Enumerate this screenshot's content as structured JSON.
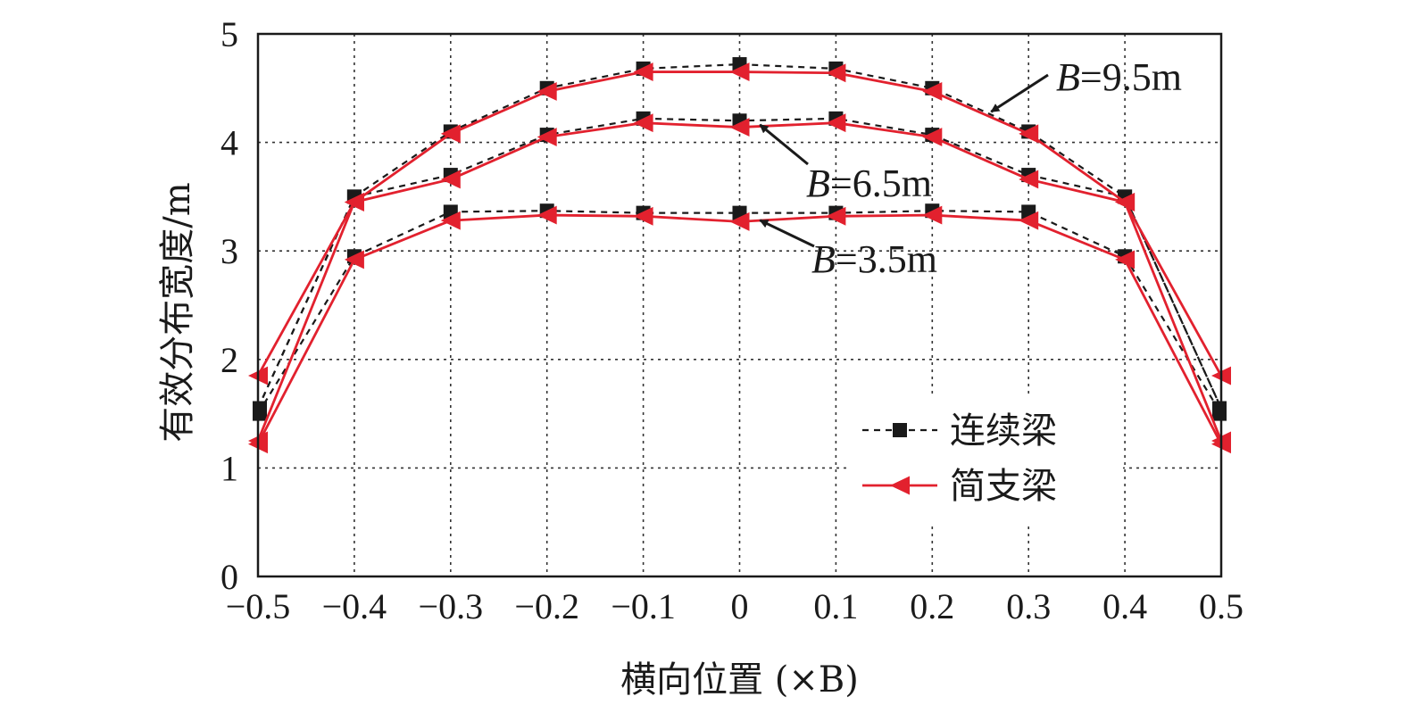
{
  "chart_data": {
    "type": "line",
    "xlabel": "横向位置 (×B)",
    "ylabel": "有效分布宽度/m",
    "xlim": [
      -0.5,
      0.5
    ],
    "ylim": [
      0,
      5
    ],
    "x_ticks": [
      "−0.5",
      "−0.4",
      "−0.3",
      "−0.2",
      "−0.1",
      "0",
      "0.1",
      "0.2",
      "0.3",
      "0.4",
      "0.5"
    ],
    "y_ticks": [
      "0",
      "1",
      "2",
      "3",
      "4",
      "5"
    ],
    "grid": true,
    "legend_position": "lower-right",
    "x": [
      -0.5,
      -0.4,
      -0.3,
      -0.2,
      -0.1,
      0,
      0.1,
      0.2,
      0.3,
      0.4,
      0.5
    ],
    "series": [
      {
        "name": "连续梁",
        "group": "B=9.5m",
        "color": "#1a1a1a",
        "style": "dashed",
        "marker": "square",
        "values": [
          1.55,
          3.5,
          4.1,
          4.5,
          4.68,
          4.72,
          4.68,
          4.5,
          4.1,
          3.5,
          1.55
        ]
      },
      {
        "name": "简支梁",
        "group": "B=9.5m",
        "color": "#e2212e",
        "style": "solid",
        "marker": "triangle-left",
        "values": [
          1.85,
          3.45,
          4.08,
          4.47,
          4.65,
          4.65,
          4.64,
          4.47,
          4.08,
          3.45,
          1.85
        ]
      },
      {
        "name": "连续梁",
        "group": "B=6.5m",
        "color": "#1a1a1a",
        "style": "dashed",
        "marker": "square",
        "values": [
          1.55,
          3.5,
          3.7,
          4.07,
          4.22,
          4.2,
          4.22,
          4.07,
          3.7,
          3.5,
          1.55
        ]
      },
      {
        "name": "简支梁",
        "group": "B=6.5m",
        "color": "#e2212e",
        "style": "solid",
        "marker": "triangle-left",
        "values": [
          1.25,
          3.45,
          3.66,
          4.05,
          4.18,
          4.14,
          4.18,
          4.05,
          3.66,
          3.45,
          1.25
        ]
      },
      {
        "name": "连续梁",
        "group": "B=3.5m",
        "color": "#1a1a1a",
        "style": "dashed",
        "marker": "square",
        "values": [
          1.5,
          2.95,
          3.36,
          3.37,
          3.35,
          3.35,
          3.35,
          3.37,
          3.36,
          2.95,
          1.5
        ]
      },
      {
        "name": "简支梁",
        "group": "B=3.5m",
        "color": "#e2212e",
        "style": "solid",
        "marker": "triangle-left",
        "values": [
          1.22,
          2.92,
          3.28,
          3.33,
          3.32,
          3.27,
          3.32,
          3.33,
          3.28,
          2.92,
          1.22
        ]
      }
    ],
    "annotations": [
      {
        "italic": "B",
        "rest": "=9.5m",
        "target": [
          0.25,
          4.25
        ]
      },
      {
        "italic": "B",
        "rest": "=6.5m",
        "target": [
          0.01,
          4.13
        ]
      },
      {
        "italic": "B",
        "rest": "=3.5m",
        "target": [
          0.01,
          3.25
        ]
      }
    ],
    "legend": [
      {
        "label": "连续梁",
        "color": "#1a1a1a",
        "style": "dashed",
        "marker": "square"
      },
      {
        "label": "简支梁",
        "color": "#e2212e",
        "style": "solid",
        "marker": "triangle-left"
      }
    ]
  }
}
